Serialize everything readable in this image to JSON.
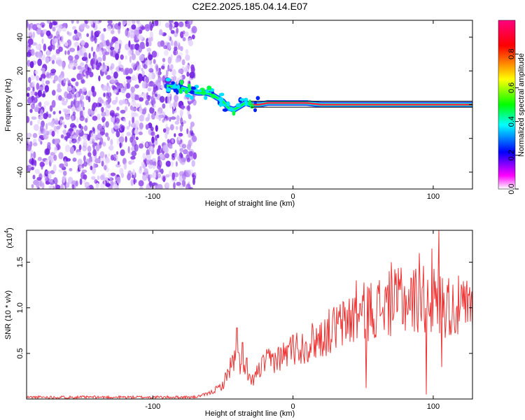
{
  "chart_data": [
    {
      "type": "heatmap",
      "title": "C2E2.2025.185.04.14.E07",
      "xlabel": "Height of straight line (km)",
      "ylabel": "Frequency (Hz)",
      "xlim": [
        -190,
        128
      ],
      "ylim": [
        -50,
        50
      ],
      "xticks": [
        "-100",
        "0",
        "100"
      ],
      "yticks": [
        "40",
        "20",
        "0",
        "-20",
        "-40"
      ],
      "colorbar": {
        "label": "Normalized spectral amplitude",
        "range": [
          0,
          1
        ],
        "ticks": [
          "0.0",
          "0.2",
          "0.4",
          "0.6",
          "0.8"
        ],
        "colormap": [
          "#ffffff",
          "#ff00ff",
          "#0000ff",
          "#00ffff",
          "#00ff00",
          "#ffff00",
          "#ff0000",
          "#ff0080"
        ]
      },
      "noise_region_x": [
        -190,
        -70
      ],
      "signal_track": {
        "x": [
          -90,
          -80,
          -68,
          -62,
          -58,
          -54,
          -50,
          -46,
          -42,
          -38,
          -34,
          -30,
          -24,
          -18,
          -10,
          0,
          10,
          20,
          40,
          60,
          80,
          100,
          128
        ],
        "y": [
          11,
          10,
          7,
          7,
          6,
          4,
          2,
          -2,
          -3,
          -1,
          1,
          0,
          0,
          1,
          1,
          1,
          1,
          0,
          0,
          0,
          0,
          0,
          0
        ]
      },
      "line_color": "#000000"
    },
    {
      "type": "line",
      "title": "",
      "xlabel": "Height of straight line (km)",
      "ylabel": "SNR (10 * v/v)",
      "multiplier_label": "(x10",
      "multiplier_exp": "4",
      "xlim": [
        -190,
        128
      ],
      "ylim": [
        0,
        1.85
      ],
      "xticks": [
        "-100",
        "0",
        "100"
      ],
      "yticks": [
        "0.5",
        "1.0",
        "1.5"
      ],
      "color": "#ee3333",
      "envelope": {
        "x": [
          -190,
          -70,
          -60,
          -50,
          -45,
          -40,
          -35,
          -30,
          -25,
          -20,
          -10,
          0,
          10,
          20,
          30,
          40,
          50,
          60,
          70,
          80,
          90,
          100,
          110,
          128
        ],
        "y": [
          0.02,
          0.02,
          0.06,
          0.15,
          0.35,
          0.45,
          0.3,
          0.18,
          0.3,
          0.4,
          0.45,
          0.55,
          0.6,
          0.68,
          0.78,
          0.85,
          0.95,
          1.0,
          1.05,
          1.08,
          1.1,
          1.08,
          1.02,
          0.98
        ]
      },
      "spikes": [
        {
          "x": -40,
          "y": 0.78
        },
        {
          "x": -36,
          "y": 0.62
        },
        {
          "x": -33,
          "y": 0.45
        },
        {
          "x": 0,
          "y": 0.7
        },
        {
          "x": 20,
          "y": 0.84
        },
        {
          "x": 40,
          "y": 1.1
        },
        {
          "x": 45,
          "y": 1.3
        },
        {
          "x": 52,
          "y": 0.12
        },
        {
          "x": 60,
          "y": 1.2
        },
        {
          "x": 70,
          "y": 1.5
        },
        {
          "x": 77,
          "y": 1.44
        },
        {
          "x": 90,
          "y": 1.6
        },
        {
          "x": 95,
          "y": 0.05
        },
        {
          "x": 99,
          "y": 1.65
        },
        {
          "x": 104,
          "y": 1.85
        },
        {
          "x": 106,
          "y": 0.35
        },
        {
          "x": 110,
          "y": 1.25
        }
      ]
    }
  ]
}
